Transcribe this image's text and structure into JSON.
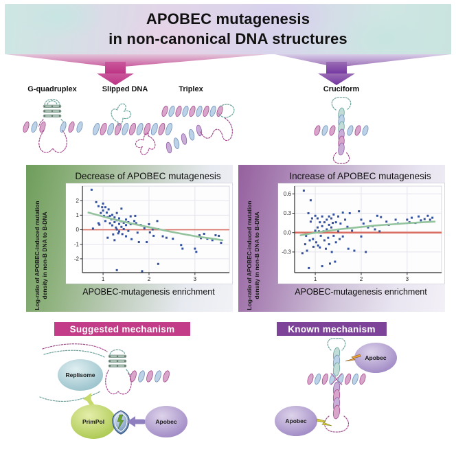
{
  "title": {
    "line1": "APOBEC mutagenesis",
    "line2": "in non-canonical DNA structures"
  },
  "structures": {
    "g_quadruplex": "G-quadruplex",
    "slipped_dna": "Slipped DNA",
    "triplex": "Triplex",
    "cruciform": "Cruciform"
  },
  "panels": {
    "decrease": {
      "title": "Decrease of APOBEC mutagenesis",
      "ylabel_line1": "Log-ratio of APOBEC-induced mutation",
      "ylabel_line2": "density in non-B DNA to B-DNA",
      "xlabel": "APOBEC-mutagenesis enrichment"
    },
    "increase": {
      "title": "Increase of APOBEC mutagenesis",
      "ylabel_line1": "Log-ratio of APOBEC-induced mutation",
      "ylabel_line2": "density in non-B DNA to B-DNA",
      "xlabel": "APOBEC-mutagenesis enrichment"
    }
  },
  "mechanisms": {
    "suggested": {
      "label": "Suggested mechanism",
      "replisome": "Replisome",
      "primpol": "PrimPol",
      "apobec": "Apobec"
    },
    "known": {
      "label": "Known mechanism",
      "apobec_top": "Apobec",
      "apobec_bottom": "Apobec"
    }
  },
  "colors": {
    "point_blue": "#33519e",
    "ref_line_red": "#d96f63",
    "trend_green": "#92c39d",
    "grid": "#e4e4ec",
    "axis": "#2a2a2a",
    "suggested_box": "#c23c87",
    "known_box": "#7d4399",
    "arrow_pink": "#bd3384",
    "arrow_purple": "#7336a0"
  },
  "chart_data": [
    {
      "type": "scatter",
      "title": "Decrease of APOBEC mutagenesis",
      "xlabel": "APOBEC-mutagenesis enrichment",
      "ylabel": "Log-ratio of APOBEC-induced mutation density in non-B DNA to B-DNA",
      "xlim": [
        0.55,
        3.75
      ],
      "ylim": [
        -2.95,
        3.0
      ],
      "xticks": [
        1,
        2,
        3
      ],
      "yticks": [
        2,
        1,
        0,
        -1,
        -2
      ],
      "ytick_labels": [
        "2",
        "1",
        "0",
        "-1",
        "-2"
      ],
      "ref_line_y": 0,
      "ref_line_width": 1.6,
      "legend": "none",
      "grid": true,
      "trend": [
        [
          0.68,
          1.18
        ],
        [
          0.95,
          0.95
        ],
        [
          1.25,
          0.7
        ],
        [
          1.55,
          0.48
        ],
        [
          1.85,
          0.27
        ],
        [
          2.15,
          0.08
        ],
        [
          2.45,
          -0.12
        ],
        [
          2.75,
          -0.3
        ],
        [
          3.05,
          -0.47
        ],
        [
          3.35,
          -0.6
        ],
        [
          3.6,
          -0.72
        ]
      ],
      "points": [
        [
          0.75,
          2.75
        ],
        [
          0.78,
          0.08
        ],
        [
          0.85,
          1.9
        ],
        [
          0.9,
          1.62
        ],
        [
          0.9,
          0.45
        ],
        [
          0.92,
          0.35
        ],
        [
          0.95,
          1.15
        ],
        [
          0.98,
          1.55
        ],
        [
          1.0,
          1.8
        ],
        [
          1.0,
          1.32
        ],
        [
          1.02,
          0.95
        ],
        [
          1.05,
          1.55
        ],
        [
          1.05,
          0.6
        ],
        [
          1.08,
          1.18
        ],
        [
          1.1,
          0.85
        ],
        [
          1.1,
          -0.55
        ],
        [
          1.12,
          1.4
        ],
        [
          1.15,
          0.95
        ],
        [
          1.15,
          0.45
        ],
        [
          1.18,
          0.72
        ],
        [
          1.2,
          1.02
        ],
        [
          1.2,
          0.3
        ],
        [
          1.22,
          -0.32
        ],
        [
          1.25,
          0.85
        ],
        [
          1.25,
          0.52
        ],
        [
          1.25,
          -0.72
        ],
        [
          1.28,
          0.15
        ],
        [
          1.3,
          1.15
        ],
        [
          1.3,
          0.65
        ],
        [
          1.3,
          0.02
        ],
        [
          1.3,
          -2.78
        ],
        [
          1.33,
          -0.25
        ],
        [
          1.35,
          0.78
        ],
        [
          1.35,
          0.4
        ],
        [
          1.35,
          -0.12
        ],
        [
          1.4,
          1.45
        ],
        [
          1.4,
          0.58
        ],
        [
          1.4,
          0.2
        ],
        [
          1.42,
          -0.3
        ],
        [
          1.45,
          0.48
        ],
        [
          1.45,
          0.05
        ],
        [
          1.5,
          0.7
        ],
        [
          1.5,
          0.32
        ],
        [
          1.5,
          -0.45
        ],
        [
          1.55,
          0.52
        ],
        [
          1.55,
          -0.08
        ],
        [
          1.6,
          0.92
        ],
        [
          1.6,
          0.38
        ],
        [
          1.62,
          -0.65
        ],
        [
          1.68,
          0.6
        ],
        [
          1.7,
          0.95
        ],
        [
          1.72,
          0.45
        ],
        [
          1.75,
          -0.2
        ],
        [
          1.78,
          -0.85
        ],
        [
          1.82,
          0.32
        ],
        [
          1.85,
          -2.85
        ],
        [
          1.9,
          0.1
        ],
        [
          1.95,
          -0.85
        ],
        [
          2.0,
          0.38
        ],
        [
          2.02,
          -0.18
        ],
        [
          2.08,
          0.02
        ],
        [
          2.1,
          -0.42
        ],
        [
          2.18,
          0.6
        ],
        [
          2.2,
          0.05
        ],
        [
          2.2,
          -2.35
        ],
        [
          2.3,
          -0.45
        ],
        [
          2.38,
          -0.55
        ],
        [
          2.52,
          -0.62
        ],
        [
          2.7,
          -1.05
        ],
        [
          2.73,
          -1.3
        ],
        [
          3.0,
          -1.3
        ],
        [
          3.03,
          -1.52
        ],
        [
          3.1,
          -0.38
        ],
        [
          3.13,
          -0.58
        ],
        [
          3.2,
          -0.28
        ],
        [
          3.27,
          -0.62
        ],
        [
          3.38,
          -0.72
        ],
        [
          3.45,
          -0.38
        ],
        [
          3.52,
          -0.42
        ],
        [
          3.57,
          -0.9
        ]
      ]
    },
    {
      "type": "scatter",
      "title": "Increase of APOBEC mutagenesis",
      "xlabel": "APOBEC-mutagenesis enrichment",
      "ylabel": "Log-ratio of APOBEC-induced mutation density in non-B DNA to B-DNA",
      "xlim": [
        0.55,
        3.75
      ],
      "ylim": [
        -0.62,
        0.72
      ],
      "xticks": [
        1,
        2,
        3
      ],
      "yticks": [
        0.6,
        0.3,
        0,
        -0.3
      ],
      "ytick_labels": [
        "0.6",
        "0.3",
        "0.0",
        "-0.3"
      ],
      "ref_line_y": 0,
      "ref_line_width": 2.6,
      "legend": "none",
      "grid": true,
      "trend": [
        [
          0.68,
          -0.04
        ],
        [
          1.1,
          0.01
        ],
        [
          1.5,
          0.05
        ],
        [
          1.9,
          0.08
        ],
        [
          2.3,
          0.11
        ],
        [
          2.7,
          0.13
        ],
        [
          3.1,
          0.15
        ],
        [
          3.6,
          0.17
        ]
      ],
      "points": [
        [
          0.72,
          -0.32
        ],
        [
          0.75,
          0.65
        ],
        [
          0.78,
          -0.18
        ],
        [
          0.8,
          -0.05
        ],
        [
          0.82,
          -0.28
        ],
        [
          0.85,
          0.3
        ],
        [
          0.86,
          -0.55
        ],
        [
          0.88,
          -0.12
        ],
        [
          0.9,
          0.5
        ],
        [
          0.9,
          0.17
        ],
        [
          0.93,
          0.22
        ],
        [
          0.95,
          -0.1
        ],
        [
          0.96,
          -0.22
        ],
        [
          1.0,
          0.26
        ],
        [
          1.0,
          0.03
        ],
        [
          1.02,
          -0.15
        ],
        [
          1.05,
          0.22
        ],
        [
          1.05,
          0.08
        ],
        [
          1.06,
          -0.2
        ],
        [
          1.08,
          0.02
        ],
        [
          1.1,
          0.16
        ],
        [
          1.1,
          -0.23
        ],
        [
          1.12,
          -0.05
        ],
        [
          1.15,
          0.25
        ],
        [
          1.15,
          0.1
        ],
        [
          1.15,
          -0.52
        ],
        [
          1.18,
          0.02
        ],
        [
          1.2,
          0.16
        ],
        [
          1.2,
          -0.12
        ],
        [
          1.23,
          -0.25
        ],
        [
          1.25,
          0.2
        ],
        [
          1.25,
          0.05
        ],
        [
          1.28,
          -0.08
        ],
        [
          1.3,
          0.25
        ],
        [
          1.3,
          0.12
        ],
        [
          1.3,
          -0.18
        ],
        [
          1.32,
          -0.48
        ],
        [
          1.35,
          0.22
        ],
        [
          1.35,
          0.08
        ],
        [
          1.36,
          -0.3
        ],
        [
          1.38,
          0.15
        ],
        [
          1.4,
          0.28
        ],
        [
          1.4,
          -0.05
        ],
        [
          1.43,
          -0.45
        ],
        [
          1.45,
          0.16
        ],
        [
          1.45,
          -0.15
        ],
        [
          1.5,
          0.25
        ],
        [
          1.5,
          0.02
        ],
        [
          1.53,
          -0.1
        ],
        [
          1.55,
          0.14
        ],
        [
          1.6,
          0.31
        ],
        [
          1.6,
          -0.06
        ],
        [
          1.65,
          0.2
        ],
        [
          1.7,
          0.09
        ],
        [
          1.72,
          -0.25
        ],
        [
          1.75,
          0.3
        ],
        [
          1.8,
          0.03
        ],
        [
          1.85,
          -0.28
        ],
        [
          1.95,
          0.33
        ],
        [
          2.0,
          0.2
        ],
        [
          2.0,
          -0.06
        ],
        [
          2.05,
          0.14
        ],
        [
          2.1,
          -0.3
        ],
        [
          2.15,
          0.08
        ],
        [
          2.2,
          0.18
        ],
        [
          2.25,
          0.1
        ],
        [
          2.3,
          0.05
        ],
        [
          2.35,
          0.26
        ],
        [
          2.4,
          0.02
        ],
        [
          2.43,
          0.24
        ],
        [
          2.55,
          0.17
        ],
        [
          2.6,
          0.12
        ],
        [
          2.75,
          0.2
        ],
        [
          2.8,
          0.14
        ],
        [
          3.0,
          0.2
        ],
        [
          3.05,
          0.16
        ],
        [
          3.1,
          0.23
        ],
        [
          3.18,
          0.15
        ],
        [
          3.25,
          0.25
        ],
        [
          3.3,
          0.19
        ],
        [
          3.38,
          0.21
        ],
        [
          3.45,
          0.26
        ],
        [
          3.5,
          0.2
        ],
        [
          3.55,
          0.23
        ]
      ]
    }
  ]
}
